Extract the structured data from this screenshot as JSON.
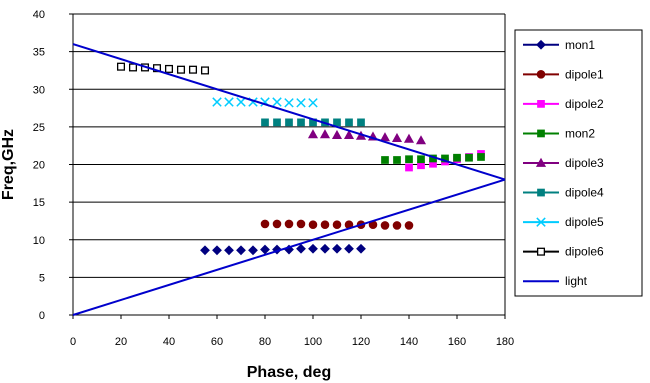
{
  "chart_data": {
    "type": "line",
    "title": "",
    "xlabel": "Phase, deg",
    "ylabel": "Freq,GHz",
    "xlim": [
      0,
      180
    ],
    "ylim": [
      0,
      40
    ],
    "xticks": [
      0,
      20,
      40,
      60,
      80,
      100,
      120,
      140,
      160,
      180
    ],
    "yticks": [
      0,
      5,
      10,
      15,
      20,
      25,
      30,
      35,
      40
    ],
    "grid": "horizontal",
    "legend_position": "right",
    "series": [
      {
        "name": "mon1",
        "color": "#000080",
        "marker": "diamond",
        "line": false,
        "x": [
          55,
          60,
          65,
          70,
          75,
          80,
          85,
          90,
          95,
          100,
          105,
          110,
          115,
          120
        ],
        "y": [
          8.6,
          8.6,
          8.6,
          8.6,
          8.6,
          8.7,
          8.7,
          8.7,
          8.8,
          8.8,
          8.8,
          8.8,
          8.8,
          8.8
        ]
      },
      {
        "name": "dipole1",
        "color": "#800000",
        "marker": "circle",
        "line": false,
        "x": [
          80,
          85,
          90,
          95,
          100,
          105,
          110,
          115,
          120,
          125,
          130,
          135,
          140
        ],
        "y": [
          12.1,
          12.1,
          12.1,
          12.1,
          12.0,
          12.0,
          12.0,
          12.0,
          12.0,
          12.0,
          11.9,
          11.9,
          11.9
        ]
      },
      {
        "name": "dipole2",
        "color": "#FF00FF",
        "marker": "square",
        "line": false,
        "x": [
          140,
          145,
          150,
          155,
          160,
          165,
          170
        ],
        "y": [
          19.6,
          19.9,
          20.1,
          20.4,
          20.7,
          21.0,
          21.4
        ]
      },
      {
        "name": "mon2",
        "color": "#008000",
        "marker": "square",
        "line": false,
        "x": [
          130,
          135,
          140,
          145,
          150,
          155,
          160,
          165,
          170
        ],
        "y": [
          20.6,
          20.6,
          20.7,
          20.7,
          20.8,
          20.8,
          20.9,
          20.9,
          21.0
        ]
      },
      {
        "name": "dipole3",
        "color": "#800080",
        "marker": "triangle",
        "line": false,
        "x": [
          100,
          105,
          110,
          115,
          120,
          125,
          130,
          135,
          140,
          145
        ],
        "y": [
          24.0,
          24.0,
          23.9,
          23.9,
          23.8,
          23.7,
          23.6,
          23.5,
          23.4,
          23.2
        ]
      },
      {
        "name": "dipole4",
        "color": "#008080",
        "marker": "square",
        "line": false,
        "x": [
          80,
          85,
          90,
          95,
          100,
          105,
          110,
          115,
          120
        ],
        "y": [
          25.6,
          25.6,
          25.6,
          25.6,
          25.6,
          25.6,
          25.6,
          25.6,
          25.6
        ]
      },
      {
        "name": "dipole5",
        "color": "#00CCFF",
        "marker": "x",
        "line": false,
        "x": [
          60,
          65,
          70,
          75,
          80,
          85,
          90,
          95,
          100
        ],
        "y": [
          28.3,
          28.3,
          28.3,
          28.3,
          28.3,
          28.3,
          28.2,
          28.2,
          28.2
        ]
      },
      {
        "name": "dipole6",
        "color": "#000000",
        "marker": "open-square",
        "line": false,
        "x": [
          20,
          25,
          30,
          35,
          40,
          45,
          50,
          55
        ],
        "y": [
          33.0,
          32.9,
          32.9,
          32.8,
          32.7,
          32.6,
          32.6,
          32.5
        ]
      },
      {
        "name": "light",
        "color": "#0000CC",
        "marker": "none",
        "line": true,
        "segments": [
          {
            "x": [
              0,
              180
            ],
            "y": [
              0,
              18
            ]
          },
          {
            "x": [
              0,
              180
            ],
            "y": [
              36,
              18
            ]
          }
        ]
      }
    ]
  }
}
